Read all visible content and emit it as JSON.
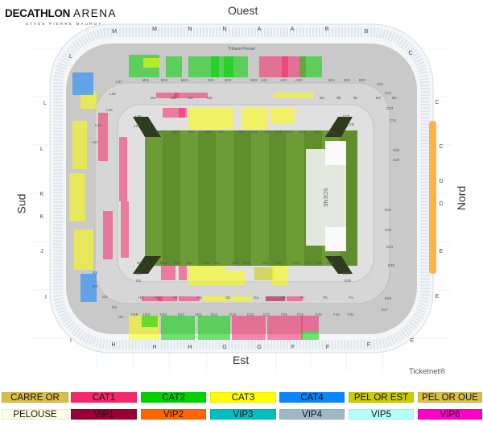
{
  "logo": {
    "brand": "DECATHLON",
    "arena": "ARENA",
    "subtitle": "STADE PIERRE MAUROY"
  },
  "compass": {
    "top": "Ouest",
    "bottom": "Est",
    "left": "Sud",
    "right": "Nord"
  },
  "stage_label": "SCENE",
  "press_label": "Tribune Presse",
  "ticketnet": "Ticketnet®",
  "perimeter_letters": {
    "top": [
      "M",
      "M",
      "N",
      "N",
      "A",
      "A",
      "B",
      "B"
    ],
    "bottom": [
      "H",
      "H",
      "H",
      "G",
      "G",
      "F",
      "F",
      "F"
    ],
    "left": [
      "L",
      "L",
      "L",
      "K",
      "K",
      "J",
      "I",
      "I"
    ],
    "right": [
      "C",
      "C",
      "C",
      "D",
      "D",
      "E",
      "E",
      "E"
    ]
  },
  "sections": {
    "top_row": [
      "M21",
      "M22",
      "M23",
      "N21",
      "N22",
      "N23",
      "A21",
      "A22",
      "A23",
      "B21",
      "B22",
      "B23"
    ],
    "top_inner": [
      "Ma",
      "Mb",
      "Mc",
      "Md",
      "Ba",
      "Bb",
      "Bc",
      "Bd",
      "Be"
    ],
    "top_field": [
      "M03",
      "M02",
      "M01",
      "N04",
      "N01",
      "N02",
      "A01",
      "A02",
      "B01",
      "B02",
      "B03",
      "B04",
      "C01"
    ],
    "bottom_field": [
      "I01",
      "H04",
      "H03",
      "H02",
      "H01",
      "G04",
      "G03",
      "G02",
      "G01",
      "F04",
      "F03",
      "F02",
      "F01",
      "E08"
    ],
    "bottom_inner": [
      "Hd",
      "Hc",
      "Hb",
      "Ha",
      "Gb",
      "Ga",
      "Fd",
      "Fc",
      "Fb",
      "Fa"
    ],
    "bottom_row": [
      "H25",
      "H24",
      "H23",
      "H22",
      "H21",
      "G24",
      "G23",
      "G22",
      "G21",
      "F25",
      "F24",
      "F23",
      "F22",
      "F21"
    ],
    "corners": [
      "L05",
      "L04",
      "C02",
      "C05",
      "I03",
      "I02",
      "E04",
      "E05",
      "L27",
      "L26",
      "L25",
      "L24",
      "L23",
      "C21",
      "C22",
      "C23",
      "C24",
      "C25",
      "C26",
      "I25",
      "I24",
      "I23",
      "I22",
      "I21",
      "E22",
      "E23",
      "E24",
      "E25",
      "E26",
      "E27"
    ]
  },
  "legend": [
    {
      "label": "CARRE OR",
      "color": "#d9bf4a"
    },
    {
      "label": "CAT1",
      "color": "#f5286a"
    },
    {
      "label": "CAT2",
      "color": "#00d200"
    },
    {
      "label": "CAT3",
      "color": "#ffff00"
    },
    {
      "label": "CAT4",
      "color": "#0a84ff"
    },
    {
      "label": "PEL OR EST",
      "color": "#cccc00"
    },
    {
      "label": "PEL OR OUE",
      "color": "#d9bf4a"
    },
    {
      "label": "PELOUSE",
      "color": "#ffffe6"
    },
    {
      "label": "VIP1",
      "color": "#990033"
    },
    {
      "label": "VIP2",
      "color": "#ff6600"
    },
    {
      "label": "VIP3",
      "color": "#00bfbf"
    },
    {
      "label": "VIP4",
      "color": "#9fb8c8"
    },
    {
      "label": "VIP5",
      "color": "#b3ffff"
    },
    {
      "label": "VIP6",
      "color": "#ff00c8"
    }
  ]
}
